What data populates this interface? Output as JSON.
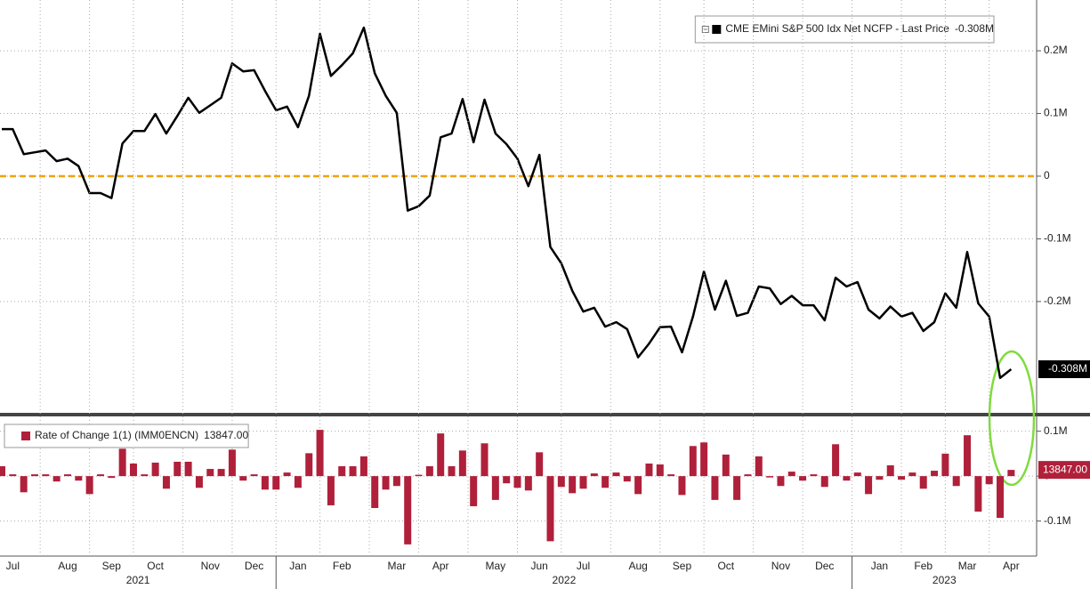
{
  "chart_data": [
    {
      "type": "line",
      "series": [
        {
          "name": "CME EMini S&P 500 Idx Net NCFP - Last Price",
          "color": "#000000",
          "values": [
            75000,
            75000,
            35000,
            38000,
            41000,
            24000,
            28000,
            16000,
            -27000,
            -27000,
            -35000,
            52000,
            72000,
            72000,
            99000,
            68000,
            96000,
            125000,
            101000,
            113000,
            125000,
            180000,
            167000,
            169000,
            136000,
            105000,
            111000,
            78000,
            128000,
            227000,
            160000,
            177000,
            196000,
            237000,
            164000,
            128000,
            101000,
            -55000,
            -48000,
            -31000,
            62000,
            68000,
            123000,
            54000,
            122000,
            68000,
            51000,
            28000,
            -16000,
            34000,
            -113000,
            -139000,
            -183000,
            -216000,
            -210000,
            -240000,
            -233000,
            -244000,
            -289000,
            -267000,
            -241000,
            -240000,
            -281000,
            -224000,
            -152000,
            -213000,
            -167000,
            -223000,
            -218000,
            -176000,
            -179000,
            -204000,
            -191000,
            -206000,
            -206000,
            -230000,
            -162000,
            -176000,
            -169000,
            -213000,
            -227000,
            -208000,
            -224000,
            -218000,
            -247000,
            -233000,
            -187000,
            -210000,
            -121000,
            -203000,
            -224000,
            -322000,
            -308000
          ],
          "last_value_label": "-0.308M"
        }
      ],
      "ylim": [
        -379000,
        281000
      ],
      "yticks": [
        {
          "value": 200000,
          "label": "0.2M"
        },
        {
          "value": 100000,
          "label": "0.1M"
        },
        0,
        {
          "value": -100000,
          "label": "-0.1M"
        },
        {
          "value": -200000,
          "label": "-0.2M"
        }
      ],
      "grid": true,
      "zero_line_color": "#f0a30a",
      "legend": "top-right"
    },
    {
      "type": "bar",
      "series": [
        {
          "name": "Rate of Change 1(1) (IMM0ENCN)",
          "color": "#b0203a",
          "values": [
            22000,
            4000,
            -36000,
            4000,
            4000,
            -12000,
            4000,
            -10000,
            -40000,
            4000,
            -4000,
            61000,
            28000,
            4000,
            30000,
            -28000,
            32000,
            32000,
            -26000,
            16000,
            16000,
            59000,
            -10000,
            4000,
            -30000,
            -30000,
            8000,
            -26000,
            51000,
            103000,
            -65000,
            22000,
            22000,
            44000,
            -71000,
            -30000,
            -22000,
            -152000,
            3000,
            22000,
            95000,
            22000,
            57000,
            -67000,
            73000,
            -53000,
            -16000,
            -26000,
            -32000,
            53000,
            -145000,
            -24000,
            -38000,
            -28000,
            6000,
            -26000,
            8000,
            -12000,
            -40000,
            28000,
            26000,
            4000,
            -42000,
            67000,
            75000,
            -53000,
            48000,
            -53000,
            4000,
            44000,
            -3000,
            -22000,
            10000,
            -10000,
            4000,
            -24000,
            71000,
            -10000,
            8000,
            -40000,
            -8000,
            24000,
            -8000,
            8000,
            -28000,
            12000,
            50000,
            -22000,
            91000,
            -79000,
            -18000,
            -93000,
            13847
          ],
          "last_value_label": "13847.00"
        }
      ],
      "categories": [
        null,
        "Jul",
        null,
        null,
        null,
        null,
        "Aug",
        null,
        null,
        null,
        "Sep",
        null,
        null,
        null,
        "Oct",
        null,
        null,
        null,
        null,
        "Nov",
        null,
        null,
        null,
        "Dec",
        null,
        null,
        null,
        "Jan",
        null,
        null,
        null,
        "Feb",
        null,
        null,
        null,
        null,
        "Mar",
        null,
        null,
        null,
        "Apr",
        null,
        null,
        null,
        null,
        "May",
        null,
        null,
        null,
        "Jun",
        null,
        null,
        null,
        "Jul",
        null,
        null,
        null,
        null,
        "Aug",
        null,
        null,
        null,
        "Sep",
        null,
        null,
        null,
        "Oct",
        null,
        null,
        null,
        null,
        "Nov",
        null,
        null,
        null,
        "Dec",
        null,
        null,
        null,
        null,
        "Jan",
        null,
        null,
        null,
        "Feb",
        null,
        null,
        null,
        "Mar",
        null,
        null,
        null,
        "Apr"
      ],
      "years": [
        "2021",
        "2022",
        "2023"
      ],
      "ylim": [
        -178000,
        129000
      ],
      "yticks": [
        {
          "value": 100000,
          "label": "0.1M"
        },
        0,
        {
          "value": -100000,
          "label": "-0.1M"
        }
      ],
      "grid": true,
      "legend": "top-left"
    }
  ]
}
